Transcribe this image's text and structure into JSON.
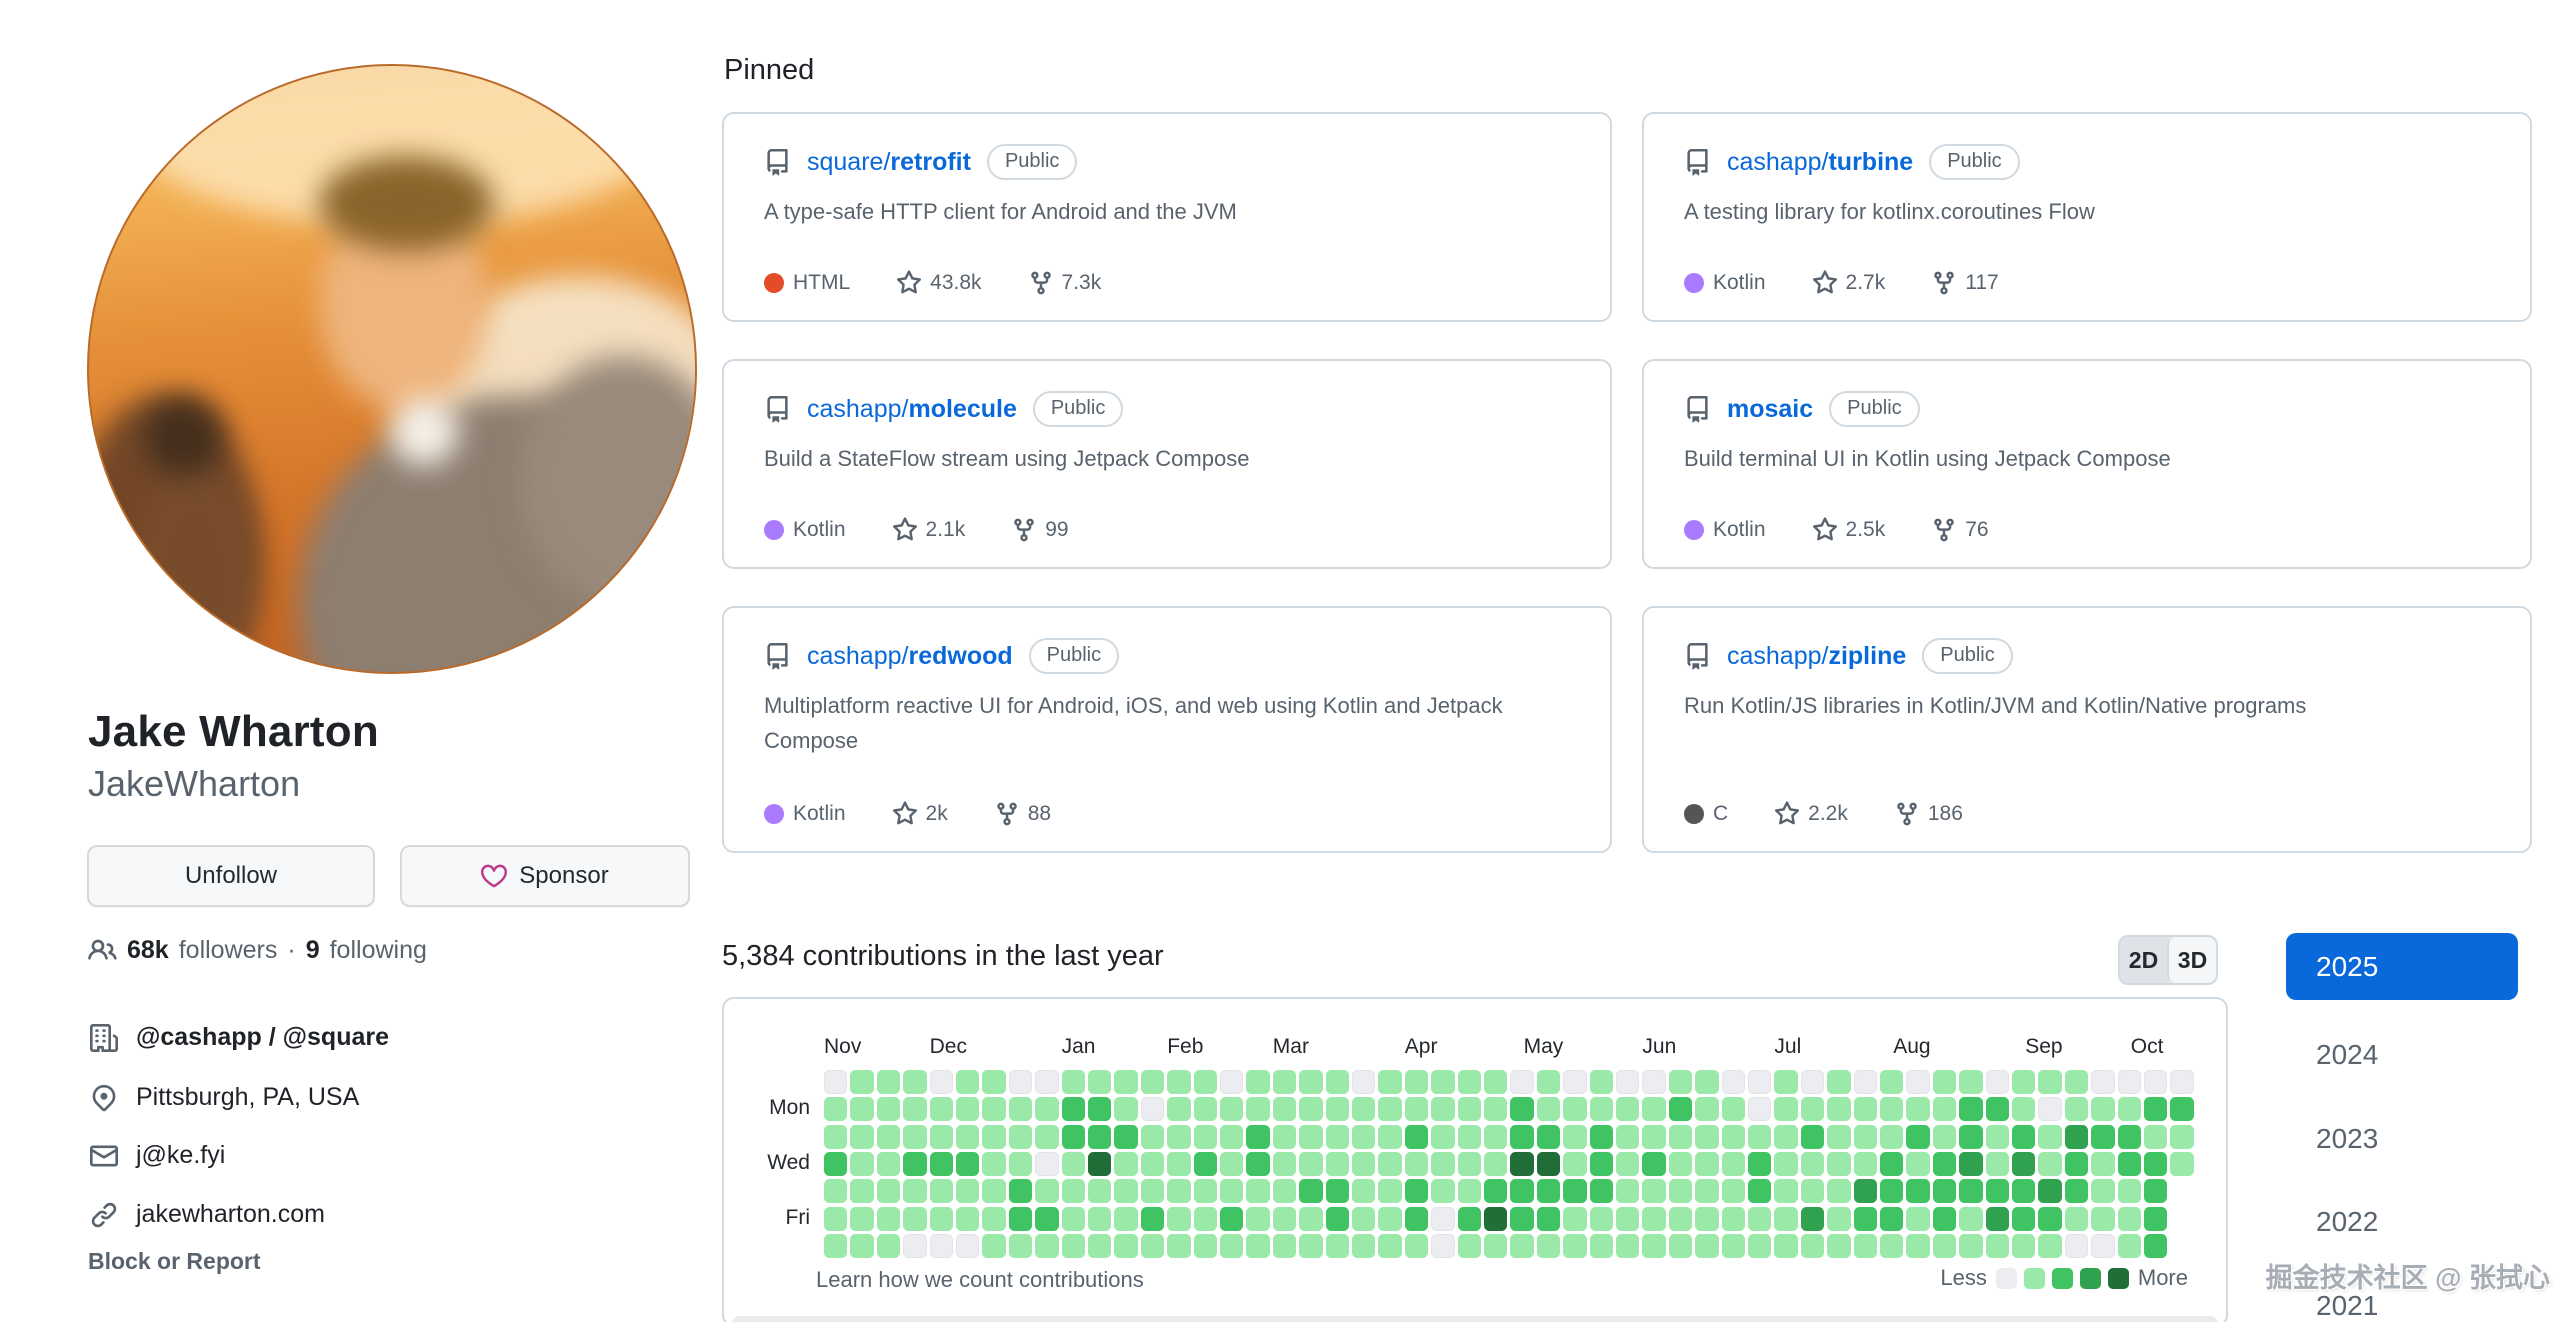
{
  "profile": {
    "name": "Jake Wharton",
    "username": "JakeWharton",
    "buttons": {
      "unfollow": "Unfollow",
      "sponsor": "Sponsor"
    },
    "followers_count": "68k",
    "followers_label": "followers",
    "dot_separator": "·",
    "following_count": "9",
    "following_label": "following",
    "organizations": "@cashapp / @square",
    "location": "Pittsburgh, PA, USA",
    "email": "j@ke.fyi",
    "website": "jakewharton.com",
    "block_report": "Block or Report"
  },
  "pinned": {
    "heading": "Pinned",
    "repos": [
      {
        "owner": "square/",
        "name": "retrofit",
        "badge": "Public",
        "description": "A type-safe HTTP client for Android and the JVM",
        "language": "HTML",
        "language_color": "#e34c26",
        "stars": "43.8k",
        "forks": "7.3k"
      },
      {
        "owner": "cashapp/",
        "name": "turbine",
        "badge": "Public",
        "description": "A testing library for kotlinx.coroutines Flow",
        "language": "Kotlin",
        "language_color": "#a97bff",
        "stars": "2.7k",
        "forks": "117"
      },
      {
        "owner": "cashapp/",
        "name": "molecule",
        "badge": "Public",
        "description": "Build a StateFlow stream using Jetpack Compose",
        "language": "Kotlin",
        "language_color": "#a97bff",
        "stars": "2.1k",
        "forks": "99"
      },
      {
        "owner": "",
        "name": "mosaic",
        "badge": "Public",
        "description": "Build terminal UI in Kotlin using Jetpack Compose",
        "language": "Kotlin",
        "language_color": "#a97bff",
        "stars": "2.5k",
        "forks": "76"
      },
      {
        "owner": "cashapp/",
        "name": "redwood",
        "badge": "Public",
        "description": "Multiplatform reactive UI for Android, iOS, and web using Kotlin and Jetpack Compose",
        "language": "Kotlin",
        "language_color": "#a97bff",
        "stars": "2k",
        "forks": "88"
      },
      {
        "owner": "cashapp/",
        "name": "zipline",
        "badge": "Public",
        "description": "Run Kotlin/JS libraries in Kotlin/JVM and Kotlin/Native programs",
        "language": "C",
        "language_color": "#555555",
        "stars": "2.2k",
        "forks": "186"
      }
    ]
  },
  "contributions": {
    "heading": "5,384 contributions in the last year",
    "view_toggle": {
      "options": [
        "2D",
        "3D"
      ],
      "selected": "2D"
    },
    "footer_link": "Learn how we count contributions",
    "legend_less": "Less",
    "legend_more": "More",
    "years": [
      "2025",
      "2024",
      "2023",
      "2022",
      "2021"
    ],
    "selected_year": "2025",
    "accent_color": "#0969da",
    "chart_data": {
      "type": "heatmap",
      "title": "5,384 contributions in the last year",
      "total_contributions": 5384,
      "months": [
        {
          "label": "Nov",
          "week": 0
        },
        {
          "label": "Dec",
          "week": 4
        },
        {
          "label": "Jan",
          "week": 9
        },
        {
          "label": "Feb",
          "week": 13
        },
        {
          "label": "Mar",
          "week": 17
        },
        {
          "label": "Apr",
          "week": 22
        },
        {
          "label": "May",
          "week": 26.5
        },
        {
          "label": "Jun",
          "week": 31
        },
        {
          "label": "Jul",
          "week": 36
        },
        {
          "label": "Aug",
          "week": 40.5
        },
        {
          "label": "Sep",
          "week": 45.5
        },
        {
          "label": "Oct",
          "week": 49.5
        }
      ],
      "day_labels": [
        {
          "label": "Mon",
          "row": 1
        },
        {
          "label": "Wed",
          "row": 3
        },
        {
          "label": "Fri",
          "row": 5
        }
      ],
      "levels_palette": [
        "#ebedf0",
        "#9be9a8",
        "#40c463",
        "#30a14e",
        "#216e39"
      ],
      "weeks": [
        "0112111",
        "1111111",
        "1111111",
        "1112110",
        "0112110",
        "1112110",
        "1111111",
        "0111221",
        "0110121",
        "1221111",
        "1224111",
        "1121111",
        "1011121",
        "1111111",
        "1112111",
        "0111121",
        "1122111",
        "1111111",
        "1111211",
        "1111221",
        "0111111",
        "1111111",
        "1121221",
        "1111100",
        "1111121",
        "1111241",
        "0224221",
        "1124221",
        "0111211",
        "1122211",
        "0111111",
        "0112111",
        "1211111",
        "1111111",
        "0111111",
        "0012211",
        "1111111",
        "0121131",
        "1111111",
        "0111321",
        "1112221",
        "0121211",
        "1112221",
        "1223211",
        "0211231",
        "1123221",
        "1011321",
        "1132210",
        "0121110",
        "0122111",
        "0212222",
        "0211"
      ]
    }
  },
  "watermark": "掘金技术社区 @ 张拭心"
}
